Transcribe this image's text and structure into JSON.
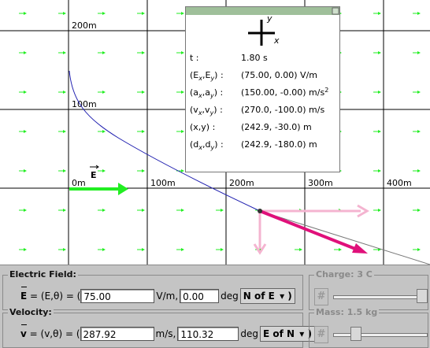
{
  "plot": {
    "grid_labels": [
      "200m",
      "100m",
      "0m",
      "100m",
      "200m",
      "300m",
      "400m"
    ],
    "field_label": "E"
  },
  "info": {
    "axis_y": "y",
    "axis_x": "x",
    "rows": [
      {
        "label": [
          "t :"
        ],
        "value": "1.80 s"
      },
      {
        "label": [
          "(E",
          "x",
          ",E",
          "y",
          ") :"
        ],
        "value": "(75.00, 0.00) V/m"
      },
      {
        "label": [
          "(a",
          "x",
          ",a",
          "y",
          ") :"
        ],
        "value": "(150.00, -0.00) m/s",
        "sup": "2"
      },
      {
        "label": [
          "(v",
          "x",
          ",v",
          "y",
          ") :"
        ],
        "value": "(270.0, -100.0) m/s"
      },
      {
        "label": [
          "(x,y) :"
        ],
        "value": "(242.9, -30.0) m"
      },
      {
        "label": [
          "(d",
          "x",
          ",d",
          "y",
          ") :"
        ],
        "value": "(242.9, -180.0) m"
      }
    ]
  },
  "controls": {
    "field": {
      "title": "Electric Field:",
      "symbol": "E",
      "eq": "= (E,θ) = (",
      "magnitude": "75.00",
      "unit": "V/m,",
      "angle": "0.00",
      "deg": "deg",
      "ref": "N of E"
    },
    "velocity": {
      "title": "Velocity:",
      "symbol": "v",
      "eq": "= (v,θ) = (",
      "magnitude": "287.92",
      "unit": "m/s,",
      "angle": "110.32",
      "deg": "deg",
      "ref": "E of N"
    },
    "charge": {
      "title": "Charge: 3 C",
      "button": "#"
    },
    "mass": {
      "title": "Mass: 1.5 kg",
      "button": "#"
    }
  }
}
